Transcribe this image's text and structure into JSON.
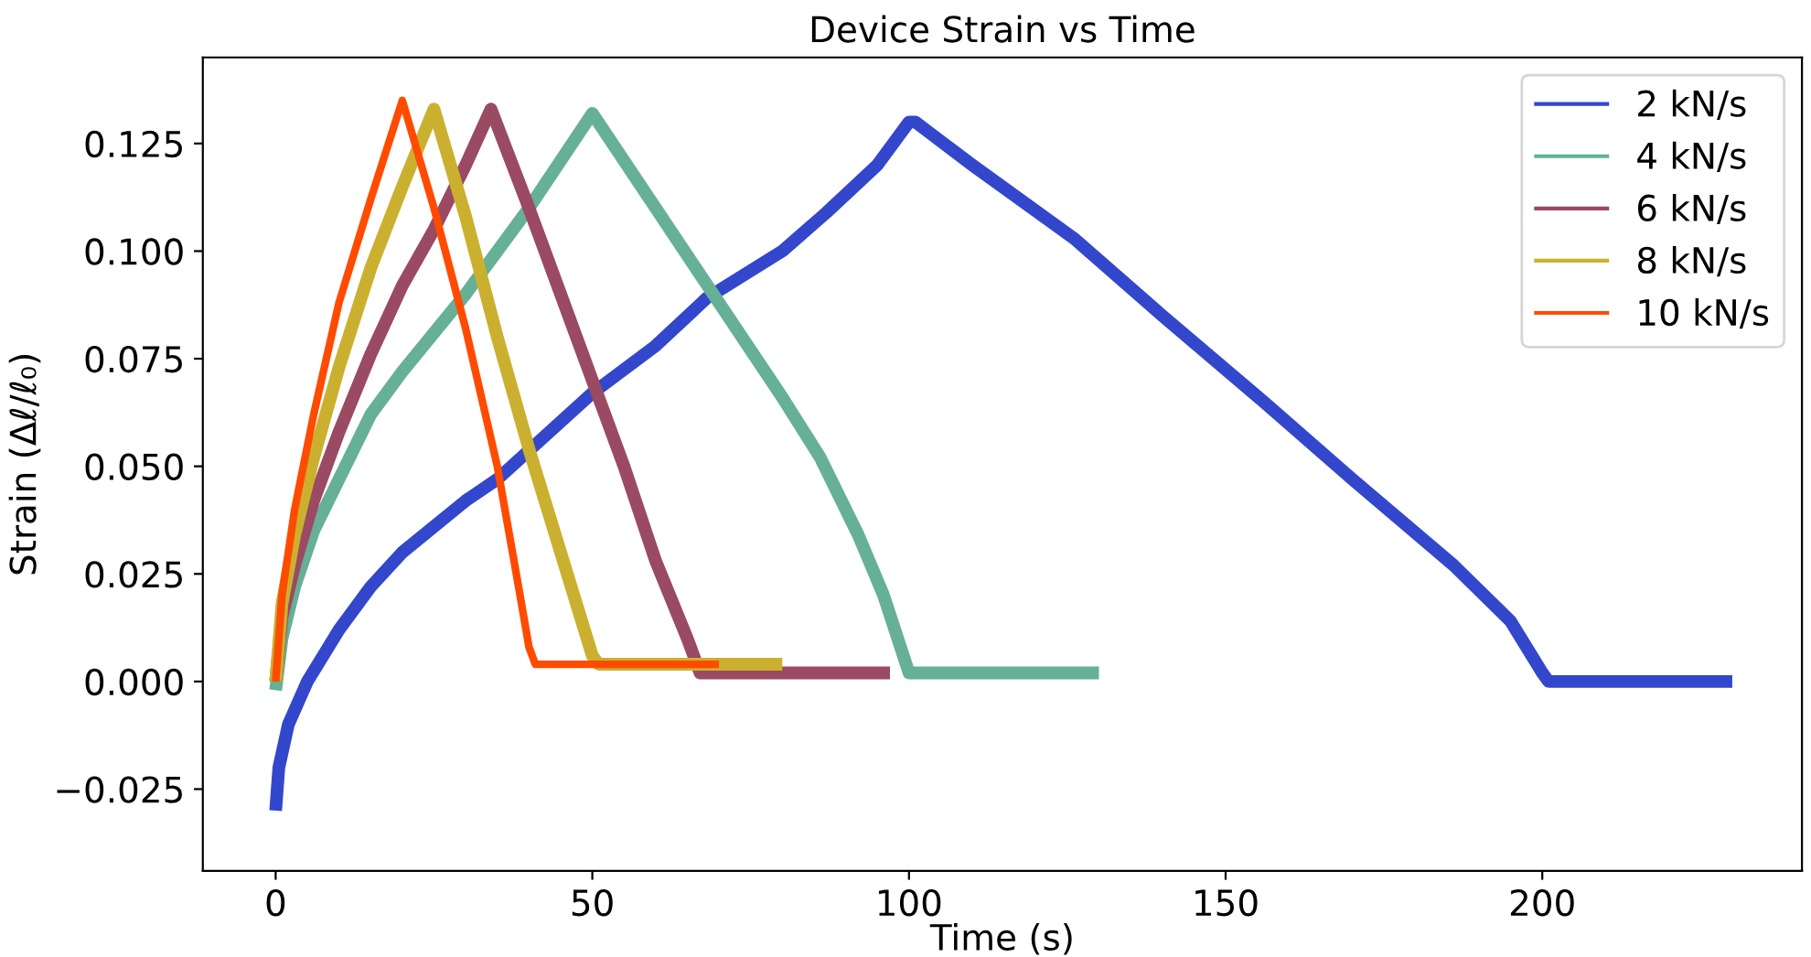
{
  "chart_data": {
    "type": "line",
    "title": "Device Strain vs Time",
    "xlabel": "Time (s)",
    "ylabel": "Strain (Δℓ/ℓ₀)",
    "xlim": [
      -11.5,
      241
    ],
    "xticks": [
      0,
      50,
      100,
      150,
      200
    ],
    "ylim": [
      -0.044,
      0.145
    ],
    "yticks": [
      {
        "value": -0.025,
        "label": "−0.025"
      },
      {
        "value": 0.0,
        "label": "0.000"
      },
      {
        "value": 0.025,
        "label": "0.025"
      },
      {
        "value": 0.05,
        "label": "0.050"
      },
      {
        "value": 0.075,
        "label": "0.075"
      },
      {
        "value": 0.1,
        "label": "0.100"
      },
      {
        "value": 0.125,
        "label": "0.125"
      }
    ],
    "grid": false,
    "legend": "top right",
    "marker": "none",
    "line_style": "solid",
    "series": [
      {
        "name": "2 kN/s",
        "color": "#3347cc",
        "x": [
          0,
          0.5,
          2,
          5,
          10,
          15,
          20,
          30,
          35,
          41,
          50,
          60,
          68,
          80,
          87,
          95,
          100,
          101,
          110,
          126,
          140,
          156,
          170,
          186,
          195,
          200,
          201,
          230
        ],
        "values": [
          -0.03,
          -0.02,
          -0.01,
          0.0,
          0.012,
          0.022,
          0.03,
          0.042,
          0.047,
          0.055,
          0.067,
          0.078,
          0.089,
          0.1,
          0.109,
          0.12,
          0.13,
          0.13,
          0.12,
          0.103,
          0.085,
          0.065,
          0.047,
          0.027,
          0.014,
          0.002,
          0.0,
          0.0
        ]
      },
      {
        "name": "4 kN/s",
        "color": "#66b096",
        "x": [
          0,
          1,
          3,
          6,
          10,
          15,
          20,
          30,
          40,
          50,
          60,
          70,
          80,
          86,
          92,
          96,
          100,
          101,
          130
        ],
        "values": [
          -0.002,
          0.01,
          0.022,
          0.035,
          0.047,
          0.062,
          0.072,
          0.09,
          0.11,
          0.132,
          0.11,
          0.088,
          0.066,
          0.052,
          0.034,
          0.02,
          0.002,
          0.002,
          0.002
        ]
      },
      {
        "name": "6 kN/s",
        "color": "#9a4a63",
        "x": [
          0,
          1,
          3,
          6,
          10,
          15,
          20,
          25,
          30,
          34,
          40,
          45,
          50,
          55,
          60,
          65,
          67,
          97
        ],
        "values": [
          0.0,
          0.015,
          0.027,
          0.042,
          0.058,
          0.076,
          0.092,
          0.105,
          0.12,
          0.133,
          0.11,
          0.09,
          0.07,
          0.05,
          0.028,
          0.01,
          0.002,
          0.002
        ]
      },
      {
        "name": "8 kN/s",
        "color": "#cbb030",
        "x": [
          0,
          1,
          3,
          6,
          10,
          15,
          20,
          25,
          30,
          35,
          40,
          45,
          50,
          51,
          80
        ],
        "values": [
          0.0,
          0.018,
          0.034,
          0.052,
          0.073,
          0.096,
          0.115,
          0.133,
          0.108,
          0.08,
          0.054,
          0.03,
          0.006,
          0.004,
          0.004
        ]
      },
      {
        "name": "10 kN/s",
        "color": "#ff4b00",
        "x": [
          0,
          1,
          3,
          6,
          10,
          15,
          20,
          25,
          30,
          35,
          38,
          40,
          41,
          70
        ],
        "values": [
          0.0,
          0.02,
          0.04,
          0.062,
          0.088,
          0.112,
          0.135,
          0.11,
          0.082,
          0.05,
          0.025,
          0.008,
          0.004,
          0.004
        ]
      }
    ]
  }
}
